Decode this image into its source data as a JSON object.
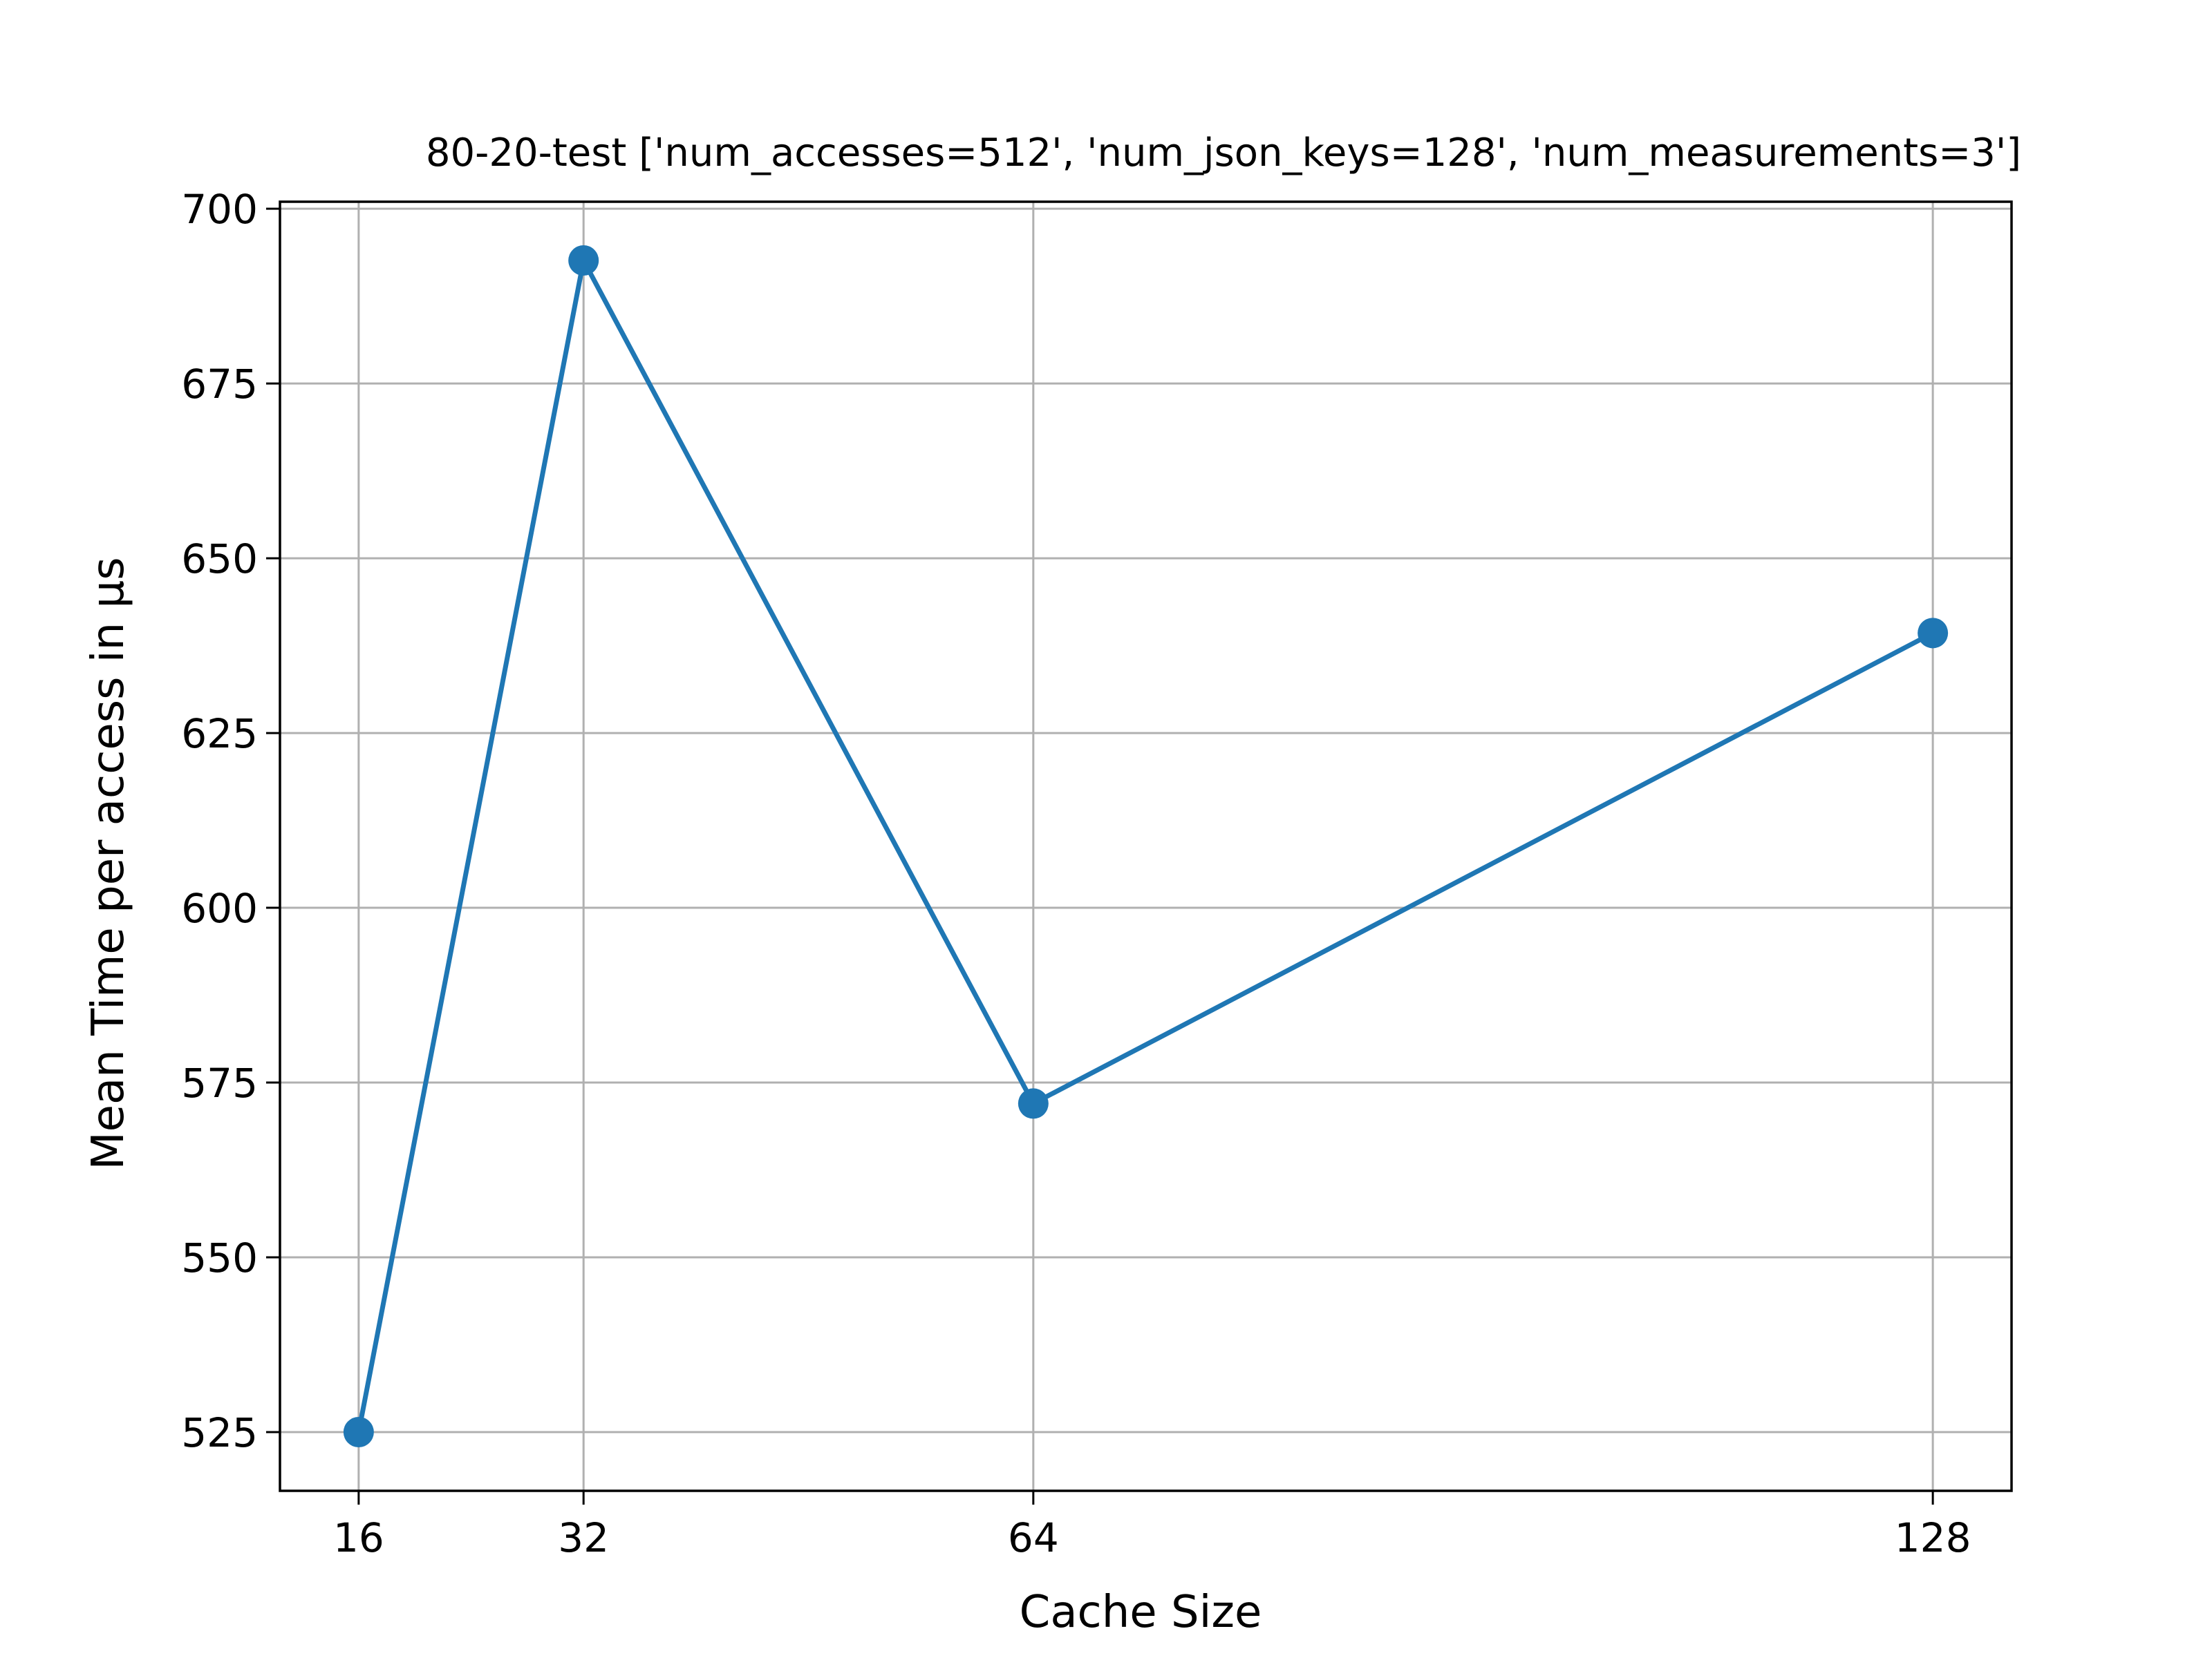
{
  "chart_data": {
    "type": "line",
    "title": "80-20-test ['num_accesses=512', 'num_json_keys=128', 'num_measurements=3']",
    "xlabel": "Cache Size",
    "ylabel": "Mean Time per access in µs",
    "x": [
      16,
      32,
      64,
      128
    ],
    "x_tick_labels": [
      "16",
      "32",
      "64",
      "128"
    ],
    "y_ticks": [
      525,
      550,
      575,
      600,
      625,
      650,
      675,
      700
    ],
    "y_tick_labels": [
      "525",
      "550",
      "575",
      "600",
      "625",
      "650",
      "675",
      "700"
    ],
    "xlim": [
      10.4,
      133.6
    ],
    "ylim": [
      516.6,
      701.0
    ],
    "grid": true,
    "legend": "none",
    "series": [
      {
        "values": [
          525.0,
          692.6,
          572.0,
          639.3
        ],
        "color": "#1f77b4",
        "marker": "circle"
      }
    ]
  }
}
